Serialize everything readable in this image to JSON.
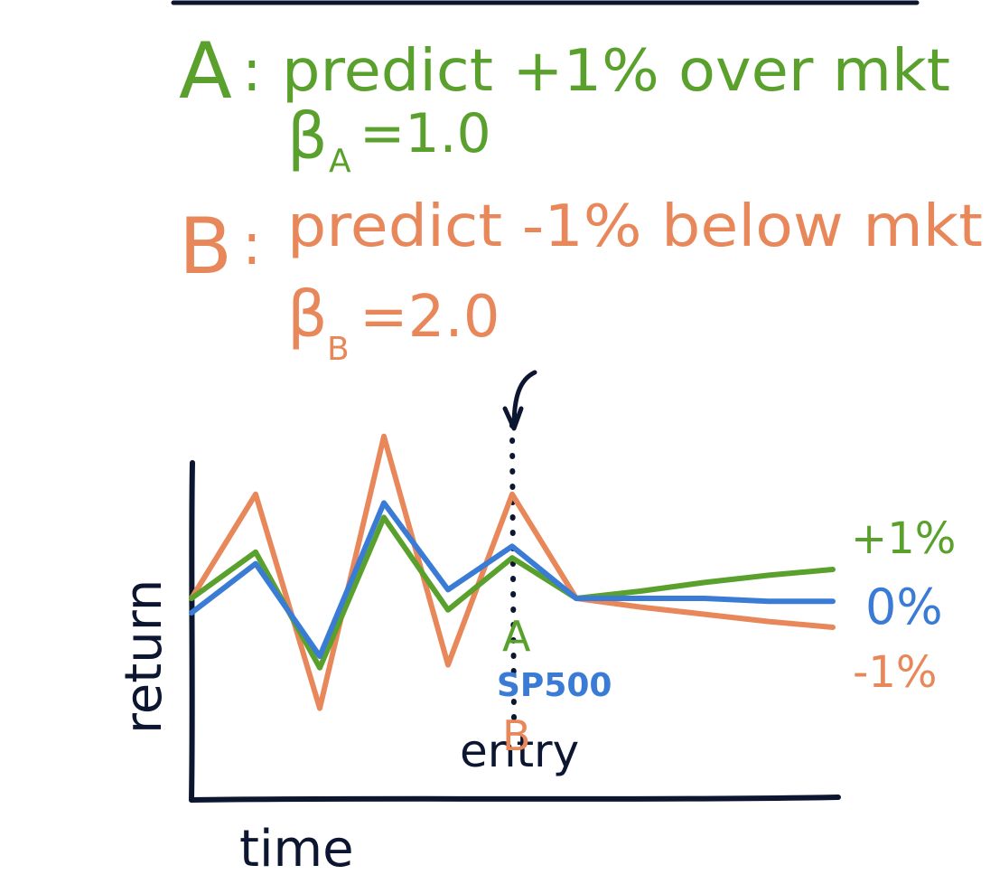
{
  "colors": {
    "green": "#5aa02c",
    "orange": "#e8875a",
    "blue": "#3a7bd5",
    "ink": "#0d1630"
  },
  "stock_a": {
    "label": "A",
    "colon": ":",
    "prediction": "predict +1% over mkt",
    "beta_symbol": "β",
    "beta_subscript": "A",
    "beta_value": "=1.0"
  },
  "stock_b": {
    "label": "B",
    "colon": ":",
    "prediction": "predict -1% below mkt",
    "beta_symbol": "β",
    "beta_subscript": "B",
    "beta_value": "=2.0"
  },
  "chart_data": {
    "type": "line",
    "xlabel": "time",
    "ylabel": "return",
    "entry_label": "entry",
    "entry_x": 10,
    "x": [
      0,
      2,
      4,
      6,
      8,
      10,
      12,
      14,
      16,
      18,
      20
    ],
    "series": [
      {
        "name": "A",
        "color_key": "green",
        "end_label": "+1%",
        "values": [
          0,
          1.6,
          -2.4,
          2.8,
          -0.4,
          1.4,
          0,
          0.25,
          0.55,
          0.8,
          1.0
        ]
      },
      {
        "name": "SP500",
        "color_key": "blue",
        "end_label": "0%",
        "values": [
          -0.5,
          1.2,
          -2.0,
          3.3,
          0.3,
          1.8,
          0,
          0,
          0,
          -0.1,
          -0.1
        ]
      },
      {
        "name": "B",
        "color_key": "orange",
        "end_label": "-1%",
        "values": [
          0,
          3.6,
          -3.8,
          5.6,
          -2.3,
          3.6,
          0,
          -0.3,
          -0.55,
          -0.8,
          -1.0
        ]
      }
    ],
    "inline_labels": [
      "A",
      "SP500",
      "B"
    ]
  }
}
